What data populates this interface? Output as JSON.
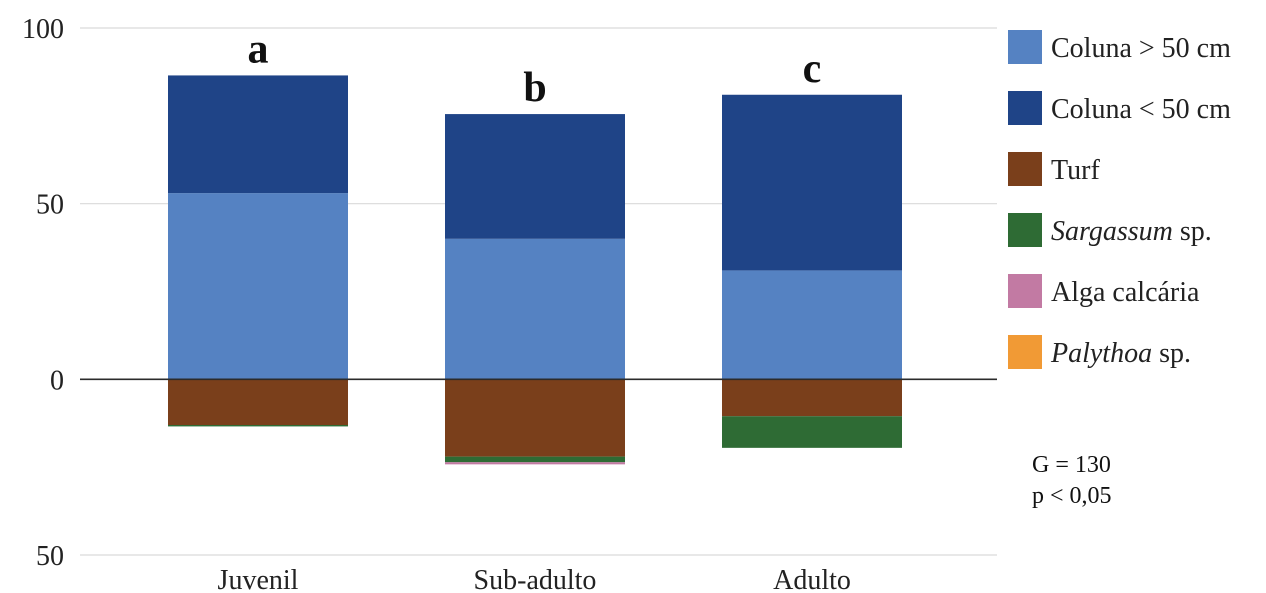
{
  "chart_data": {
    "type": "bar",
    "stacked": true,
    "categories": [
      "Juvenil",
      "Sub-adulto",
      "Adulto"
    ],
    "category_letters": [
      "a",
      "b",
      "c"
    ],
    "y_ticks": [
      {
        "value": 100,
        "label": "100"
      },
      {
        "value": 50,
        "label": "50"
      },
      {
        "value": 0,
        "label": "0"
      },
      {
        "value": -50,
        "label": "50"
      }
    ],
    "ylim": [
      -50,
      100
    ],
    "grid": true,
    "legend_position": "right",
    "series": [
      {
        "name": "Coluna > 50 cm",
        "name_main": "Coluna > 50 cm",
        "name_suffix": "",
        "italic": false,
        "color": "#5582c2",
        "values": [
          53,
          40,
          31
        ]
      },
      {
        "name": "Coluna < 50 cm",
        "name_main": "Coluna < 50 cm",
        "name_suffix": "",
        "italic": false,
        "color": "#1f4487",
        "values": [
          33.5,
          35.5,
          50
        ]
      },
      {
        "name": "Turf",
        "name_main": "Turf",
        "name_suffix": "",
        "italic": false,
        "color": "#7a3f1b",
        "values": [
          -13,
          -22,
          -10.5
        ]
      },
      {
        "name": "Sargassum sp.",
        "name_main": "Sargassum",
        "name_suffix": " sp.",
        "italic": true,
        "color": "#2e6b34",
        "values": [
          -0.4,
          -1.6,
          -9
        ]
      },
      {
        "name": "Alga calcária",
        "name_main": "Alga calcária",
        "name_suffix": "",
        "italic": false,
        "color": "#c27aa3",
        "values": [
          0,
          -0.6,
          0
        ]
      },
      {
        "name": "Palythoa sp.",
        "name_main": "Palythoa",
        "name_suffix": " sp.",
        "italic": true,
        "color": "#f19a35",
        "values": [
          0,
          0,
          0
        ]
      }
    ]
  },
  "stats": {
    "g_label": "G = 130",
    "p_label": "p < 0,05"
  }
}
